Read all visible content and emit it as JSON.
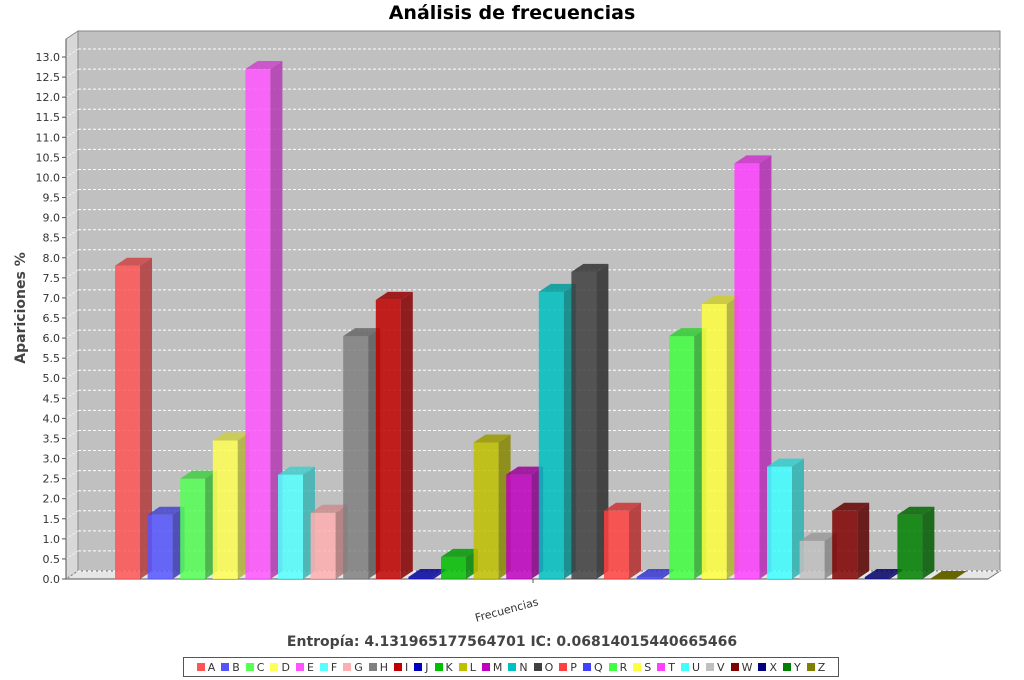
{
  "chart_data": {
    "type": "bar",
    "title": "Análisis de frecuencias",
    "xlabel": "",
    "ylabel": "Apariciones %",
    "category_label": "Frecuencias",
    "subtitle": "Entropía: 4.131965177564701  IC: 0.06814015440665466",
    "ylim": [
      0,
      13.0
    ],
    "ytick_step": 0.5,
    "grid": true,
    "legend_position": "bottom",
    "series": [
      {
        "name": "A",
        "value": 7.8,
        "color": "#ff5555"
      },
      {
        "name": "B",
        "value": 1.6,
        "color": "#5555ff"
      },
      {
        "name": "C",
        "value": 2.5,
        "color": "#55ff55"
      },
      {
        "name": "D",
        "value": 3.45,
        "color": "#ffff55"
      },
      {
        "name": "E",
        "value": 12.7,
        "color": "#ff55ff"
      },
      {
        "name": "F",
        "value": 2.6,
        "color": "#55ffff"
      },
      {
        "name": "G",
        "value": 1.65,
        "color": "#ffafaf"
      },
      {
        "name": "H",
        "value": 6.05,
        "color": "#808080"
      },
      {
        "name": "I",
        "value": 6.95,
        "color": "#c00000"
      },
      {
        "name": "J",
        "value": 0.05,
        "color": "#0000c0"
      },
      {
        "name": "K",
        "value": 0.55,
        "color": "#00c000"
      },
      {
        "name": "L",
        "value": 3.4,
        "color": "#c0c000"
      },
      {
        "name": "M",
        "value": 2.6,
        "color": "#c000c0"
      },
      {
        "name": "N",
        "value": 7.15,
        "color": "#00c0c0"
      },
      {
        "name": "O",
        "value": 7.65,
        "color": "#404040"
      },
      {
        "name": "P",
        "value": 1.7,
        "color": "#ff4040"
      },
      {
        "name": "Q",
        "value": 0.05,
        "color": "#4040ff"
      },
      {
        "name": "R",
        "value": 6.05,
        "color": "#40ff40"
      },
      {
        "name": "S",
        "value": 6.85,
        "color": "#ffff40"
      },
      {
        "name": "T",
        "value": 10.35,
        "color": "#ff40ff"
      },
      {
        "name": "U",
        "value": 2.8,
        "color": "#40ffff"
      },
      {
        "name": "V",
        "value": 0.95,
        "color": "#c0c0c0"
      },
      {
        "name": "W",
        "value": 1.7,
        "color": "#800000"
      },
      {
        "name": "X",
        "value": 0.05,
        "color": "#000080"
      },
      {
        "name": "Y",
        "value": 1.6,
        "color": "#008000"
      },
      {
        "name": "Z",
        "value": 0.0,
        "color": "#808000"
      }
    ]
  }
}
